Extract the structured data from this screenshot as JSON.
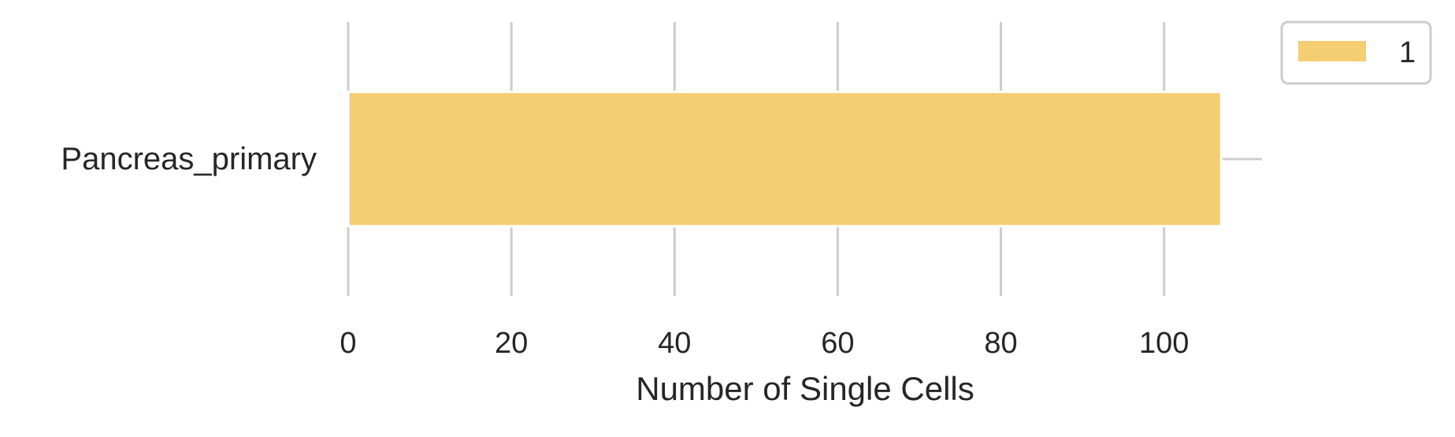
{
  "chart_data": {
    "type": "bar",
    "orientation": "horizontal",
    "categories": [
      "Pancreas_primary"
    ],
    "series": [
      {
        "name": "1",
        "values": [
          107
        ],
        "color": "#f5ce72"
      }
    ],
    "xlabel": "Number of Single Cells",
    "ylabel": "",
    "xlim": [
      0,
      112
    ],
    "xticks": [
      0,
      20,
      40,
      60,
      80,
      100
    ],
    "grid": true,
    "legend_position": "top-right"
  }
}
